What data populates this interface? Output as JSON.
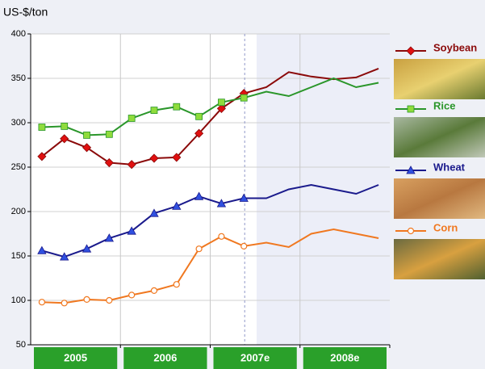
{
  "chart_data": {
    "type": "line",
    "y_label": "US-$/ton",
    "categories": [
      null,
      null,
      null,
      null,
      null,
      null,
      null,
      null,
      null,
      null,
      null,
      null,
      null,
      null,
      null,
      null
    ],
    "year_bands": [
      "2005",
      "2006",
      "2007e",
      "2008e"
    ],
    "forecast_from": 10,
    "ylim": [
      50,
      400
    ],
    "yticks": [
      50,
      100,
      150,
      200,
      250,
      300,
      350,
      400
    ],
    "grid": true,
    "legend": "right",
    "series": [
      {
        "name": "Soybean",
        "color": "#8b0a0a",
        "marker": "diamond",
        "marker_color": "#e01010",
        "values": [
          262,
          282,
          272,
          255,
          253,
          260,
          261,
          288,
          316,
          333,
          340,
          357,
          352,
          349,
          351,
          361
        ]
      },
      {
        "name": "Rice",
        "color": "#2a962a",
        "marker": "square",
        "marker_color": "#8fdc3c",
        "values": [
          295,
          296,
          286,
          287,
          305,
          314,
          318,
          307,
          323,
          328,
          335,
          330,
          340,
          350,
          340,
          345
        ]
      },
      {
        "name": "Wheat",
        "color": "#1a1a8c",
        "marker": "triangle",
        "marker_color": "#3050e0",
        "values": [
          156,
          149,
          158,
          170,
          178,
          198,
          206,
          217,
          209,
          215,
          215,
          225,
          230,
          225,
          220,
          230
        ]
      },
      {
        "name": "Corn",
        "color": "#f07820",
        "marker": "circle",
        "marker_color": "#ffffff",
        "values": [
          98,
          97,
          101,
          100,
          106,
          111,
          118,
          158,
          172,
          161,
          165,
          160,
          175,
          180,
          175,
          170
        ]
      }
    ]
  }
}
